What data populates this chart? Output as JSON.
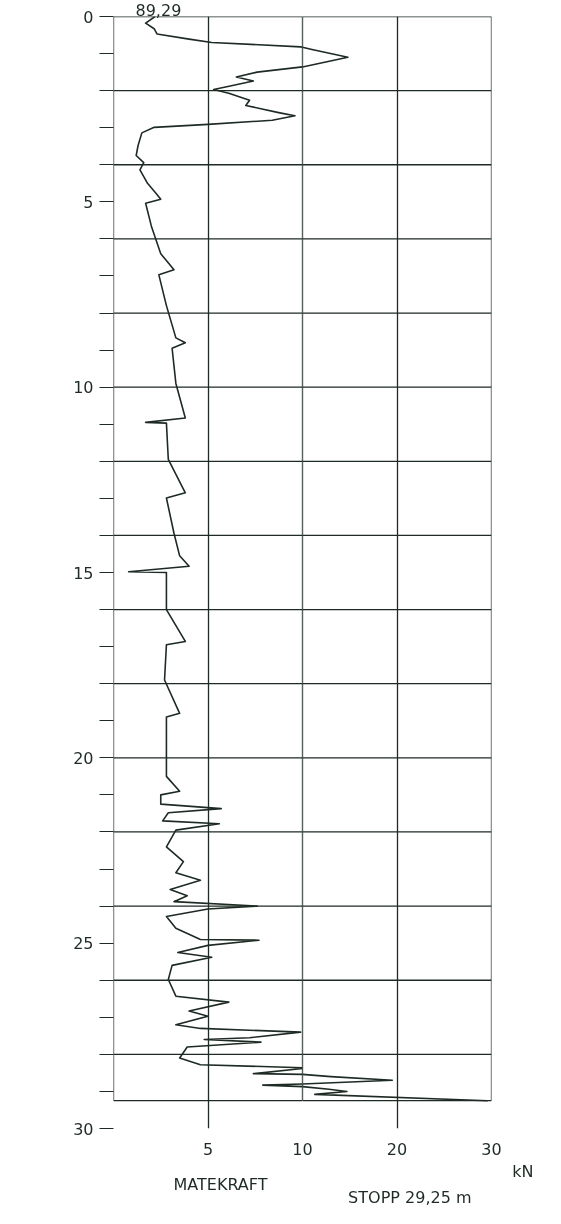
{
  "chart_data": [
    {
      "type": "line",
      "xlabel": "MATEKRAFT",
      "annotations": [
        "89,29"
      ],
      "series": [
        {
          "color": "#1e2b24",
          "x": [
            2.2,
            1.7,
            2.15,
            2.3,
            4.0,
            5.2,
            9.9,
            10,
            null,
            10,
            7.6,
            6.5,
            7.4,
            6.3,
            5.3,
            6.1,
            7.2,
            7.0,
            8.8,
            9.6,
            8.4,
            5.0,
            2.15,
            1.5,
            1.3,
            1.2,
            1.6,
            1.4,
            1.8,
            2.3,
            2.5,
            1.7,
            2.0,
            2.5,
            3.2,
            2.4,
            2.8,
            3.3,
            3.8,
            3.1,
            3.3,
            3.8,
            1.7,
            2.8,
            2.9,
            3.8,
            2.8,
            3.2,
            3.5,
            4.0,
            0.8,
            2.8,
            2.8,
            3.8,
            2.8,
            2.7,
            3.5,
            2.8,
            2.8,
            2.8,
            3.5,
            2.5,
            2.5,
            5.7,
            2.9,
            2.6,
            5.6,
            3.3,
            2.8,
            3.7,
            3.3,
            4.6,
            3.0,
            3.9,
            3.2,
            7.6,
            5.0,
            2.8,
            3.3,
            4.6,
            7.7,
            5.0,
            3.4,
            5.2,
            3.1,
            2.9,
            3.3,
            6.1,
            4.0,
            5.0,
            3.3,
            4.6,
            9.9,
            7.2,
            4.8,
            7.8,
            3.9,
            3.5,
            4.6,
            10,
            null,
            10,
            7.4,
            10,
            null,
            10,
            7.9,
            10
          ],
          "values": [
            0.0,
            0.18,
            0.33,
            0.47,
            0.61,
            0.7,
            0.82,
            0.83,
            null,
            1.36,
            1.5,
            1.63,
            1.74,
            1.86,
            1.97,
            2.07,
            2.26,
            2.4,
            2.6,
            2.68,
            2.8,
            2.91,
            2.99,
            3.14,
            3.48,
            3.75,
            3.94,
            4.14,
            4.5,
            4.8,
            4.93,
            5.04,
            5.65,
            6.4,
            6.83,
            6.97,
            7.8,
            8.67,
            8.8,
            8.95,
            9.9,
            10.83,
            10.95,
            10.97,
            11.95,
            12.85,
            12.99,
            13.94,
            14.55,
            14.83,
            14.98,
            15.0,
            16.0,
            16.86,
            16.95,
            17.9,
            18.8,
            18.9,
            20.16,
            20.5,
            20.9,
            21.0,
            21.25,
            21.37,
            21.48,
            21.7,
            21.78,
            21.95,
            22.4,
            22.8,
            23.1,
            23.3,
            23.55,
            23.72,
            23.88,
            24.0,
            24.08,
            24.28,
            24.6,
            24.9,
            24.92,
            25.06,
            25.25,
            25.38,
            25.6,
            25.98,
            26.43,
            26.59,
            26.83,
            26.97,
            27.2,
            27.3,
            27.4,
            27.55,
            27.6,
            27.67,
            27.8,
            28.1,
            28.28,
            28.36,
            null,
            28.38,
            28.52,
            28.54,
            null,
            28.8,
            28.83,
            28.87
          ]
        }
      ],
      "xlim": [
        0,
        10
      ],
      "xticks": [
        {
          "value": 0,
          "label": null
        },
        5,
        10
      ],
      "ylim": [
        30,
        0
      ],
      "yticks": [
        0,
        {
          "value": 1,
          "label": null
        },
        {
          "value": 2,
          "label": null
        },
        {
          "value": 3,
          "label": null
        },
        {
          "value": 4,
          "label": null
        },
        5,
        {
          "value": 6,
          "label": null
        },
        {
          "value": 7,
          "label": null
        },
        {
          "value": 8,
          "label": null
        },
        {
          "value": 9,
          "label": null
        },
        10,
        {
          "value": 11,
          "label": null
        },
        {
          "value": 12,
          "label": null
        },
        {
          "value": 13,
          "label": null
        },
        {
          "value": 14,
          "label": null
        },
        15,
        {
          "value": 16,
          "label": null
        },
        {
          "value": 17,
          "label": null
        },
        {
          "value": 18,
          "label": null
        },
        {
          "value": 19,
          "label": null
        },
        20,
        {
          "value": 21,
          "label": null
        },
        {
          "value": 22,
          "label": null
        },
        {
          "value": 23,
          "label": null
        },
        {
          "value": 24,
          "label": null
        },
        25,
        {
          "value": 26,
          "label": null
        },
        {
          "value": 27,
          "label": null
        },
        {
          "value": 28,
          "label": null
        },
        {
          "value": 29,
          "label": null
        },
        30
      ],
      "grid": "x",
      "ref_lines": [
        {
          "axis": "y",
          "value": 2
        },
        {
          "axis": "y",
          "value": 4
        },
        {
          "axis": "y",
          "value": 6
        },
        {
          "axis": "y",
          "value": 8
        },
        {
          "axis": "y",
          "value": 10
        },
        {
          "axis": "y",
          "value": 12
        },
        {
          "axis": "y",
          "value": 14
        },
        {
          "axis": "y",
          "value": 16
        },
        {
          "axis": "y",
          "value": 18
        },
        {
          "axis": "y",
          "value": 20
        },
        {
          "axis": "y",
          "value": 22
        },
        {
          "axis": "y",
          "value": 24
        },
        {
          "axis": "y",
          "value": 26
        },
        {
          "axis": "y",
          "value": 28
        },
        {
          "axis": "y",
          "value": 29.25
        }
      ],
      "line_style": "solid"
    },
    {
      "type": "line",
      "annotations": [
        "kN",
        "STOPP 29,25 m"
      ],
      "series": [
        {
          "color": "#1e2b24",
          "x": [
            10,
            11.0,
            14.8,
            10,
            null,
            10,
            13.0,
            19.5,
            10,
            null,
            10,
            12.8,
            14.7,
            11.3,
            29.6
          ],
          "values": [
            0.83,
            0.89,
            1.1,
            1.36,
            null,
            28.54,
            28.6,
            28.7,
            28.8,
            null,
            28.87,
            28.94,
            29.0,
            29.08,
            29.25
          ]
        }
      ],
      "xlim": [
        10,
        30
      ],
      "xticks": [
        20,
        30
      ],
      "ylim": [
        30,
        0
      ],
      "tick_labels": "x",
      "grid": "x",
      "ref_lines": [
        {
          "axis": "y",
          "value": 2
        },
        {
          "axis": "y",
          "value": 4
        },
        {
          "axis": "y",
          "value": 6
        },
        {
          "axis": "y",
          "value": 8
        },
        {
          "axis": "y",
          "value": 10
        },
        {
          "axis": "y",
          "value": 12
        },
        {
          "axis": "y",
          "value": 14
        },
        {
          "axis": "y",
          "value": 16
        },
        {
          "axis": "y",
          "value": 18
        },
        {
          "axis": "y",
          "value": 20
        },
        {
          "axis": "y",
          "value": 22
        },
        {
          "axis": "y",
          "value": 24
        },
        {
          "axis": "y",
          "value": 26
        },
        {
          "axis": "y",
          "value": 28
        },
        {
          "axis": "y",
          "value": 29.25
        }
      ],
      "line_style": "solid"
    }
  ]
}
